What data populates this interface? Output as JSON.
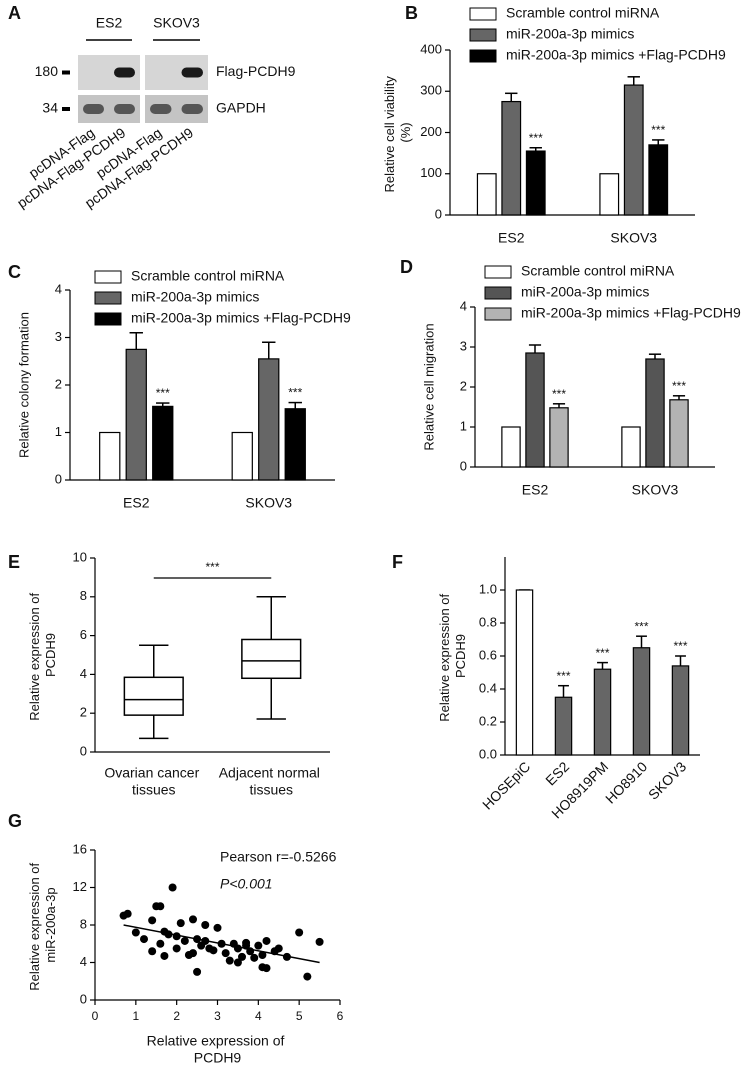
{
  "chart_data": [
    {
      "panel": "A",
      "type": "blot",
      "groups": [
        "ES2",
        "SKOV3"
      ],
      "markers": [
        "180",
        "34"
      ],
      "bands": [
        "Flag-PCDH9",
        "GAPDH"
      ],
      "lanes": [
        "pcDNA-Flag",
        "pcDNA-Flag-PCDH9",
        "pcDNA-Flag",
        "pcDNA-Flag-PCDH9"
      ]
    },
    {
      "panel": "B",
      "type": "bar",
      "ylabel": "Relative cell viability (%)",
      "categories": [
        "ES2",
        "SKOV3"
      ],
      "series": [
        {
          "name": "Scramble control miRNA",
          "color": "#ffffff",
          "values": [
            100,
            100
          ]
        },
        {
          "name": "miR-200a-3p mimics",
          "color": "#666666",
          "values": [
            275,
            315
          ],
          "errors": [
            20,
            20
          ]
        },
        {
          "name": "miR-200a-3p mimics +Flag-PCDH9",
          "color": "#000000",
          "values": [
            155,
            170
          ],
          "errors": [
            8,
            12
          ],
          "significance": [
            "***",
            "***"
          ]
        }
      ],
      "ylim": [
        0,
        400
      ],
      "yticks": [
        0,
        100,
        200,
        300,
        400
      ]
    },
    {
      "panel": "C",
      "type": "bar",
      "ylabel": "Relative colony formation",
      "categories": [
        "ES2",
        "SKOV3"
      ],
      "series": [
        {
          "name": "Scramble control miRNA",
          "color": "#ffffff",
          "values": [
            1,
            1
          ]
        },
        {
          "name": "miR-200a-3p mimics",
          "color": "#666666",
          "values": [
            2.75,
            2.55
          ],
          "errors": [
            0.35,
            0.35
          ]
        },
        {
          "name": "miR-200a-3p mimics +Flag-PCDH9",
          "color": "#000000",
          "values": [
            1.55,
            1.5
          ],
          "errors": [
            0.07,
            0.13
          ],
          "significance": [
            "***",
            "***"
          ]
        }
      ],
      "ylim": [
        0,
        4
      ],
      "yticks": [
        0,
        1,
        2,
        3,
        4
      ]
    },
    {
      "panel": "D",
      "type": "bar",
      "ylabel": "Relative cell migration",
      "categories": [
        "ES2",
        "SKOV3"
      ],
      "series": [
        {
          "name": "Scramble control miRNA",
          "color": "#ffffff",
          "values": [
            1,
            1
          ]
        },
        {
          "name": "miR-200a-3p mimics",
          "color": "#555555",
          "values": [
            2.85,
            2.7
          ],
          "errors": [
            0.2,
            0.12
          ]
        },
        {
          "name": "miR-200a-3p mimics +Flag-PCDH9",
          "color": "#b3b3b3",
          "values": [
            1.48,
            1.68
          ],
          "errors": [
            0.1,
            0.1
          ],
          "significance": [
            "***",
            "***"
          ]
        }
      ],
      "ylim": [
        0,
        4
      ],
      "yticks": [
        0,
        1,
        2,
        3,
        4
      ]
    },
    {
      "panel": "E",
      "type": "box",
      "ylabel": "Relative expression of PCDH9",
      "categories": [
        "Ovarian cancer tissues",
        "Adjacent normal tissues"
      ],
      "boxes": [
        {
          "min": 0.7,
          "q1": 1.9,
          "median": 2.7,
          "q3": 3.85,
          "max": 5.5
        },
        {
          "min": 1.7,
          "q1": 3.8,
          "median": 4.7,
          "q3": 5.8,
          "max": 8
        }
      ],
      "significance": "***",
      "ylim": [
        0,
        10
      ],
      "yticks": [
        0,
        2,
        4,
        6,
        8,
        10
      ]
    },
    {
      "panel": "F",
      "type": "bar",
      "ylabel": "Relative expression of PCDH9",
      "categories": [
        "HOSEpiC",
        "ES2",
        "HO8919PM",
        "HO8910",
        "SKOV3"
      ],
      "series": [
        {
          "colors": [
            "#ffffff",
            "#666666",
            "#666666",
            "#666666",
            "#666666"
          ],
          "values": [
            1.0,
            0.35,
            0.52,
            0.65,
            0.54
          ],
          "errors": [
            0,
            0.07,
            0.04,
            0.07,
            0.06
          ],
          "significance": [
            null,
            "***",
            "***",
            "***",
            "***"
          ]
        }
      ],
      "ylim": [
        0,
        1.2
      ],
      "yticks": [
        {
          "value": 0,
          "label": "0.0"
        },
        0.2,
        0.4,
        0.6,
        0.8,
        {
          "value": 1,
          "label": "1.0"
        }
      ]
    },
    {
      "panel": "G",
      "type": "scatter",
      "xlabel": "Relative expression of PCDH9",
      "ylabel": "Relative expression of miR-200a-3p",
      "annotations": [
        "Pearson r=-0.5266",
        "P<0.001"
      ],
      "x": [
        0.7,
        0.8,
        1.0,
        1.2,
        1.4,
        1.4,
        1.5,
        1.6,
        1.6,
        1.7,
        1.7,
        1.8,
        1.9,
        2.0,
        2.0,
        2.1,
        2.2,
        2.3,
        2.4,
        2.4,
        2.5,
        2.5,
        2.6,
        2.7,
        2.7,
        2.8,
        2.9,
        3.0,
        3.1,
        3.2,
        3.3,
        3.4,
        3.5,
        3.5,
        3.6,
        3.7,
        3.7,
        3.8,
        3.9,
        4.0,
        4.1,
        4.1,
        4.2,
        4.2,
        4.4,
        4.5,
        4.7,
        5.0,
        5.2,
        5.5
      ],
      "y": [
        9.0,
        9.2,
        7.2,
        6.5,
        5.2,
        8.5,
        10,
        10,
        6.0,
        4.7,
        7.3,
        7.0,
        12,
        6.8,
        5.5,
        8.2,
        6.3,
        4.8,
        8.6,
        5.0,
        3.0,
        6.5,
        5.8,
        6.3,
        8.0,
        5.5,
        5.3,
        7.7,
        6.0,
        5.0,
        4.2,
        6.0,
        4.0,
        5.5,
        4.6,
        6.1,
        5.8,
        5.2,
        4.5,
        5.8,
        3.5,
        4.8,
        6.3,
        3.4,
        5.2,
        5.5,
        4.6,
        7.2,
        2.5,
        6.2
      ],
      "fit": {
        "x": [
          0.7,
          5.5
        ],
        "y": [
          8.0,
          4.0
        ]
      },
      "xlim": [
        0,
        6
      ],
      "xticks": [
        0,
        1,
        2,
        3,
        4,
        5,
        6
      ],
      "ylim": [
        0,
        16
      ],
      "yticks": [
        0,
        4,
        8,
        12,
        16
      ]
    }
  ]
}
